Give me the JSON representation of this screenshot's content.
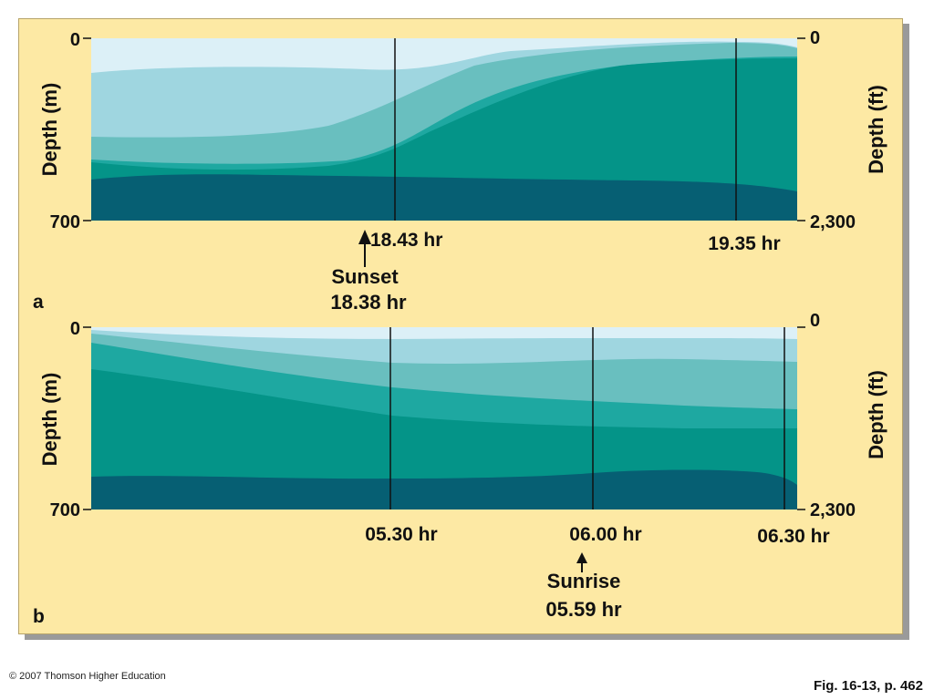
{
  "panels": [
    {
      "letter": "a",
      "left_axis": {
        "label": "Depth (m)",
        "top": "0",
        "bottom": "700"
      },
      "right_axis": {
        "label": "Depth (ft)",
        "top": "0",
        "bottom": "2,300"
      },
      "time_labels": [
        "18.43 hr",
        "19.35 hr"
      ],
      "event": {
        "name": "Sunset",
        "time": "18.38 hr"
      }
    },
    {
      "letter": "b",
      "left_axis": {
        "label": "Depth (m)",
        "top": "0",
        "bottom": "700"
      },
      "right_axis": {
        "label": "Depth (ft)",
        "top": "0",
        "bottom": "2,300"
      },
      "time_labels": [
        "05.30 hr",
        "06.00 hr",
        "06.30 hr"
      ],
      "event": {
        "name": "Sunrise",
        "time": "05.59 hr"
      }
    }
  ],
  "colors": {
    "background": "#fde9a4",
    "layer_1": "#dcf0f7",
    "layer_2": "#9fd6e0",
    "layer_3": "#69bfbf",
    "layer_4": "#1ea8a1",
    "layer_5": "#049488",
    "layer_6": "#065f73"
  },
  "footer": {
    "copyright": "© 2007 Thomson Higher Education",
    "figure": "Fig. 16-13, p. 462"
  }
}
